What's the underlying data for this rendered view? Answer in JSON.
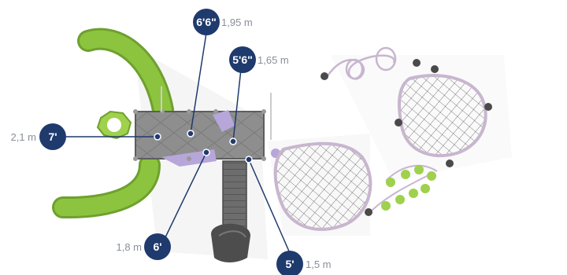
{
  "markers": [
    {
      "id": "deck-height-7ft",
      "imperial": "7'",
      "metric": "2,1 m"
    },
    {
      "id": "deck-height-6ft6",
      "imperial": "6'6\"",
      "metric": "1,95 m"
    },
    {
      "id": "deck-height-5ft6",
      "imperial": "5'6\"",
      "metric": "1,65 m"
    },
    {
      "id": "deck-height-6ft",
      "imperial": "6'",
      "metric": "1,8 m"
    },
    {
      "id": "deck-height-5ft",
      "imperial": "5'",
      "metric": "1,5 m"
    }
  ],
  "colors": {
    "badge": "#1f3a6d",
    "slide": "#8cc43f",
    "slide_shade": "#6fa02e",
    "deck": "#8e8e8e",
    "deck_dark": "#6f6f6f",
    "accent_purple": "#b7a6d9",
    "ring": "#c8b6cf",
    "net": "#555555"
  },
  "icons": [
    "tube-slide",
    "net-climber",
    "rope-bridge",
    "ring-climber",
    "stepping-pods"
  ]
}
